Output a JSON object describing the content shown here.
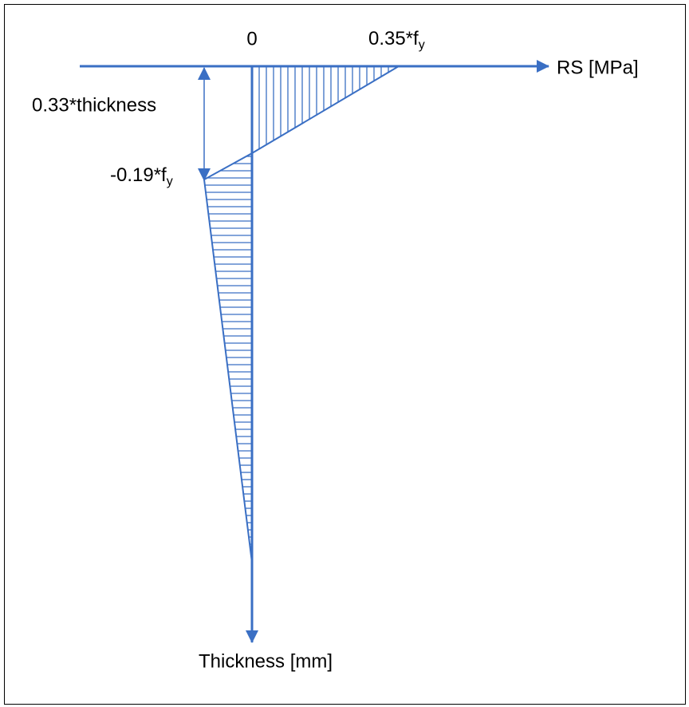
{
  "labels": {
    "zero": "0",
    "top_value": {
      "text": "0.35*f",
      "subscript": "y"
    },
    "x_axis": "RS [MPa]",
    "depth": "0.33*thickness",
    "bottom_value": {
      "text": "-0.19*f",
      "subscript": "y"
    },
    "y_axis": "Thickness [mm]"
  }
}
